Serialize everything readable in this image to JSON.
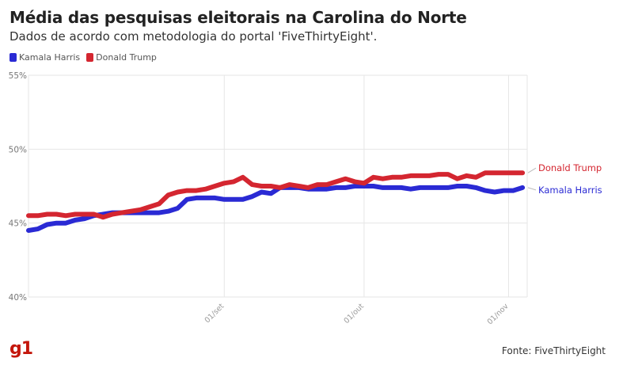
{
  "title": "Média das pesquisas eleitorais na Carolina do Norte",
  "subtitle": "Dados de acordo com metodologia do portal 'FiveThirtyEight'.",
  "source": "Fonte: FiveThirtyEight",
  "logo": "g1",
  "colors": {
    "harris": "#2a2ad4",
    "trump": "#d42630",
    "grid": "#e6e6e6",
    "axis_text": "#777777"
  },
  "chart_data": {
    "type": "line",
    "title": "Média das pesquisas eleitorais na Carolina do Norte",
    "xlabel": "",
    "ylabel": "",
    "ylim": [
      40,
      55
    ],
    "yticks": [
      40,
      45,
      50,
      55
    ],
    "ytick_labels": [
      "40%",
      "45%",
      "50%",
      "55%"
    ],
    "x_start": "2024-07-21",
    "x_end": "2024-11-05",
    "xticks": [
      "2024-09-01",
      "2024-10-01",
      "2024-11-01"
    ],
    "xtick_labels": [
      "01/set",
      "01/out",
      "01/nov"
    ],
    "grid": true,
    "legend_position": "top-left",
    "series": [
      {
        "name": "Kamala Harris",
        "end_label": "Kamala Harris",
        "color": "#2a2ad4",
        "points": [
          [
            "2024-07-21",
            44.5
          ],
          [
            "2024-07-23",
            44.6
          ],
          [
            "2024-07-25",
            44.9
          ],
          [
            "2024-07-27",
            45.0
          ],
          [
            "2024-07-29",
            45.0
          ],
          [
            "2024-07-31",
            45.2
          ],
          [
            "2024-08-02",
            45.3
          ],
          [
            "2024-08-04",
            45.5
          ],
          [
            "2024-08-06",
            45.6
          ],
          [
            "2024-08-08",
            45.7
          ],
          [
            "2024-08-10",
            45.7
          ],
          [
            "2024-08-12",
            45.7
          ],
          [
            "2024-08-14",
            45.7
          ],
          [
            "2024-08-16",
            45.7
          ],
          [
            "2024-08-18",
            45.7
          ],
          [
            "2024-08-20",
            45.8
          ],
          [
            "2024-08-22",
            46.0
          ],
          [
            "2024-08-24",
            46.6
          ],
          [
            "2024-08-26",
            46.7
          ],
          [
            "2024-08-28",
            46.7
          ],
          [
            "2024-08-30",
            46.7
          ],
          [
            "2024-09-01",
            46.6
          ],
          [
            "2024-09-03",
            46.6
          ],
          [
            "2024-09-05",
            46.6
          ],
          [
            "2024-09-07",
            46.8
          ],
          [
            "2024-09-09",
            47.1
          ],
          [
            "2024-09-11",
            47.0
          ],
          [
            "2024-09-13",
            47.4
          ],
          [
            "2024-09-15",
            47.4
          ],
          [
            "2024-09-17",
            47.4
          ],
          [
            "2024-09-19",
            47.3
          ],
          [
            "2024-09-21",
            47.3
          ],
          [
            "2024-09-23",
            47.3
          ],
          [
            "2024-09-25",
            47.4
          ],
          [
            "2024-09-27",
            47.4
          ],
          [
            "2024-09-29",
            47.5
          ],
          [
            "2024-10-01",
            47.5
          ],
          [
            "2024-10-03",
            47.5
          ],
          [
            "2024-10-05",
            47.4
          ],
          [
            "2024-10-07",
            47.4
          ],
          [
            "2024-10-09",
            47.4
          ],
          [
            "2024-10-11",
            47.3
          ],
          [
            "2024-10-13",
            47.4
          ],
          [
            "2024-10-15",
            47.4
          ],
          [
            "2024-10-17",
            47.4
          ],
          [
            "2024-10-19",
            47.4
          ],
          [
            "2024-10-21",
            47.5
          ],
          [
            "2024-10-23",
            47.5
          ],
          [
            "2024-10-25",
            47.4
          ],
          [
            "2024-10-27",
            47.2
          ],
          [
            "2024-10-29",
            47.1
          ],
          [
            "2024-10-31",
            47.2
          ],
          [
            "2024-11-02",
            47.2
          ],
          [
            "2024-11-04",
            47.4
          ]
        ]
      },
      {
        "name": "Donald Trump",
        "end_label": "Donald Trump",
        "color": "#d42630",
        "points": [
          [
            "2024-07-21",
            45.5
          ],
          [
            "2024-07-23",
            45.5
          ],
          [
            "2024-07-25",
            45.6
          ],
          [
            "2024-07-27",
            45.6
          ],
          [
            "2024-07-29",
            45.5
          ],
          [
            "2024-07-31",
            45.6
          ],
          [
            "2024-08-02",
            45.6
          ],
          [
            "2024-08-04",
            45.6
          ],
          [
            "2024-08-06",
            45.4
          ],
          [
            "2024-08-08",
            45.6
          ],
          [
            "2024-08-10",
            45.7
          ],
          [
            "2024-08-12",
            45.8
          ],
          [
            "2024-08-14",
            45.9
          ],
          [
            "2024-08-16",
            46.1
          ],
          [
            "2024-08-18",
            46.3
          ],
          [
            "2024-08-20",
            46.9
          ],
          [
            "2024-08-22",
            47.1
          ],
          [
            "2024-08-24",
            47.2
          ],
          [
            "2024-08-26",
            47.2
          ],
          [
            "2024-08-28",
            47.3
          ],
          [
            "2024-08-30",
            47.5
          ],
          [
            "2024-09-01",
            47.7
          ],
          [
            "2024-09-03",
            47.8
          ],
          [
            "2024-09-05",
            48.1
          ],
          [
            "2024-09-07",
            47.6
          ],
          [
            "2024-09-09",
            47.5
          ],
          [
            "2024-09-11",
            47.5
          ],
          [
            "2024-09-13",
            47.4
          ],
          [
            "2024-09-15",
            47.6
          ],
          [
            "2024-09-17",
            47.5
          ],
          [
            "2024-09-19",
            47.4
          ],
          [
            "2024-09-21",
            47.6
          ],
          [
            "2024-09-23",
            47.6
          ],
          [
            "2024-09-25",
            47.8
          ],
          [
            "2024-09-27",
            48.0
          ],
          [
            "2024-09-29",
            47.8
          ],
          [
            "2024-10-01",
            47.7
          ],
          [
            "2024-10-03",
            48.1
          ],
          [
            "2024-10-05",
            48.0
          ],
          [
            "2024-10-07",
            48.1
          ],
          [
            "2024-10-09",
            48.1
          ],
          [
            "2024-10-11",
            48.2
          ],
          [
            "2024-10-13",
            48.2
          ],
          [
            "2024-10-15",
            48.2
          ],
          [
            "2024-10-17",
            48.3
          ],
          [
            "2024-10-19",
            48.3
          ],
          [
            "2024-10-21",
            48.0
          ],
          [
            "2024-10-23",
            48.2
          ],
          [
            "2024-10-25",
            48.1
          ],
          [
            "2024-10-27",
            48.4
          ],
          [
            "2024-10-29",
            48.4
          ],
          [
            "2024-10-31",
            48.4
          ],
          [
            "2024-11-02",
            48.4
          ],
          [
            "2024-11-04",
            48.4
          ]
        ]
      }
    ]
  }
}
